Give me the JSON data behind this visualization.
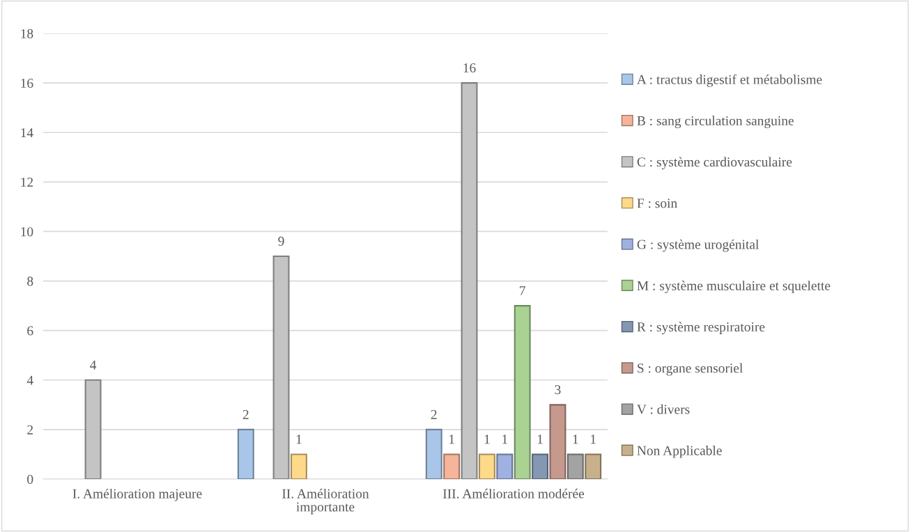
{
  "chart_data": {
    "type": "bar",
    "categories": [
      "I. Amélioration majeure",
      "II. Amélioration\nimportante",
      "III. Amélioration modérée"
    ],
    "series": [
      {
        "name": "A : tractus digestif et métabolisme",
        "color": "#a9c6e9",
        "values": [
          null,
          2,
          2
        ]
      },
      {
        "name": "B : sang circulation sanguine",
        "color": "#f6b49a",
        "values": [
          null,
          null,
          1
        ]
      },
      {
        "name": "C : système cardiovasculaire",
        "color": "#c4c4c4",
        "values": [
          4,
          9,
          16
        ]
      },
      {
        "name": "F : soin",
        "color": "#fed98a",
        "values": [
          null,
          1,
          1
        ]
      },
      {
        "name": "G : système urogénital",
        "color": "#9fb1e0",
        "values": [
          null,
          null,
          1
        ]
      },
      {
        "name": "M : système musculaire et squelette",
        "color": "#a9d293",
        "values": [
          null,
          null,
          7
        ]
      },
      {
        "name": "R : système respiratoire",
        "color": "#8498b3",
        "values": [
          null,
          null,
          1
        ]
      },
      {
        "name": "S : organe sensoriel",
        "color": "#c6998e",
        "values": [
          null,
          null,
          3
        ]
      },
      {
        "name": "V : divers",
        "color": "#a3a3a3",
        "values": [
          null,
          null,
          1
        ]
      },
      {
        "name": "Non Applicable",
        "color": "#c8b08c",
        "values": [
          null,
          null,
          1
        ]
      }
    ],
    "ylim": [
      0,
      18
    ],
    "yticks": [
      0,
      2,
      4,
      6,
      8,
      10,
      12,
      14,
      16,
      18
    ],
    "grid": "y",
    "legend": "right",
    "data_labels": true
  }
}
